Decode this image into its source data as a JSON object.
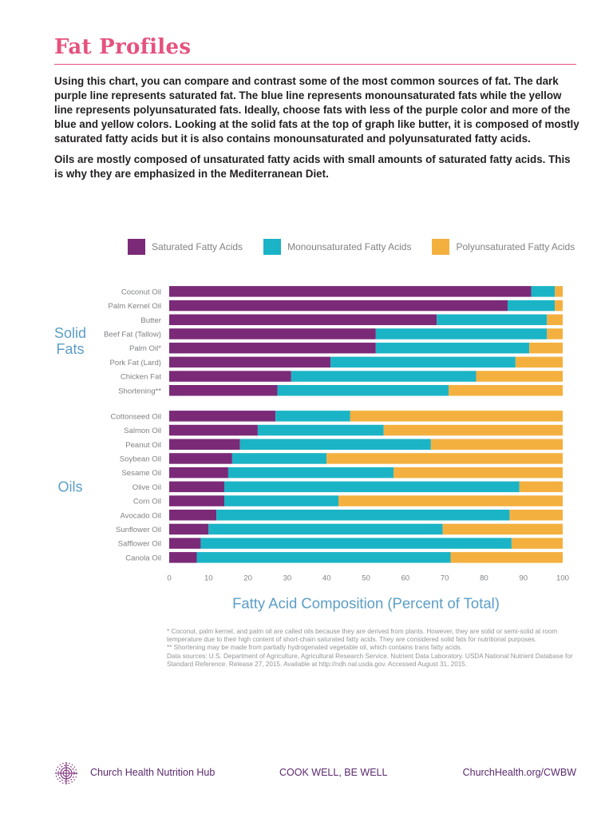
{
  "page": {
    "title": "Fat Profiles",
    "intro_paragraphs": [
      "Using this chart, you can compare and contrast some of the most common sources of fat. The dark purple line represents saturated fat. The blue line represents monounsaturated fats while the yellow line represents polyunsaturated fats. Ideally, choose fats with less of the purple color and more of the blue and yellow colors. Looking at the solid fats at the top of graph like butter, it is composed of mostly saturated fatty acids but it is also contains monounsaturated and polyunsaturated fatty acids.",
      "Oils are mostly composed of unsaturated fatty acids with small amounts of saturated fatty acids. This is why they are emphasized in the Mediterranean Diet."
    ],
    "footnotes": [
      "* Coconut, palm kernel, and palm oil are called oils because they are derived from plants. However, they are solid or semi-solid at room temperature due to their high content of short-chain saturated fatty acids. They are considered solid fats for nutritional purposes.",
      "** Shortening may be made from partially hydrogenated vegetable oil, which contains trans fatty acids.",
      "Data sources: U.S. Department of Agriculture, Agricultural Research Service. Nutrient Data Laboratory. USDA National Nutrient Database for Standard Reference. Release 27, 2015. Available at http://ndh.nal.usda.gov. Accessed August 31, 2015."
    ]
  },
  "footer": {
    "left": "Church Health Nutrition Hub",
    "center": "COOK WELL, BE WELL",
    "right": "ChurchHealth.org/CWBW",
    "logo_icon": "church-health-logo-icon"
  },
  "colors": {
    "saturated": "#7b2a78",
    "monounsaturated": "#1bb4c6",
    "polyunsaturated": "#f4b03f",
    "title_accent": "#e5527e",
    "group_label": "#5b9ec7",
    "tick_text": "#808285"
  },
  "chart_data": {
    "type": "bar",
    "orientation": "horizontal",
    "stacked": true,
    "title": "",
    "xlabel": "Fatty Acid Composition (Percent of Total)",
    "ylabel": "",
    "xlim": [
      0,
      100
    ],
    "xticks": [
      "0",
      "10",
      "20",
      "30",
      "40",
      "50",
      "60",
      "70",
      "80",
      "90",
      "100"
    ],
    "legend_position": "top",
    "series": [
      {
        "name": "Saturated Fatty Acids",
        "key": "saturated"
      },
      {
        "name": "Monounsaturated Fatty Acids",
        "key": "monounsaturated"
      },
      {
        "name": "Polyunsaturated Fatty Acids",
        "key": "polyunsaturated"
      }
    ],
    "groups": [
      {
        "label_lines": [
          "Solid",
          "Fats"
        ],
        "items": [
          {
            "name": "Coconut Oil",
            "values": [
              92,
              6,
              2
            ]
          },
          {
            "name": "Palm Kernel Oil",
            "values": [
              86,
              12,
              2
            ]
          },
          {
            "name": "Butter",
            "values": [
              68,
              28,
              4
            ]
          },
          {
            "name": "Beef Fat (Tallow)",
            "values": [
              52.5,
              43.5,
              4
            ]
          },
          {
            "name": "Palm Oil*",
            "values": [
              52.5,
              39,
              8.5
            ]
          },
          {
            "name": "Pork Fat (Lard)",
            "values": [
              41,
              47,
              12
            ]
          },
          {
            "name": "Chicken Fat",
            "values": [
              31,
              47,
              22
            ]
          },
          {
            "name": "Shortening**",
            "values": [
              27.5,
              43.5,
              29
            ]
          }
        ]
      },
      {
        "label_lines": [
          "Oils"
        ],
        "items": [
          {
            "name": "Cottonseed Oil",
            "values": [
              27,
              19,
              54
            ]
          },
          {
            "name": "Salmon Oil",
            "values": [
              22.5,
              32,
              45.5
            ]
          },
          {
            "name": "Peanut Oil",
            "values": [
              18,
              48.5,
              33.5
            ]
          },
          {
            "name": "Soybean Oil",
            "values": [
              16,
              24,
              60
            ]
          },
          {
            "name": "Sesame Oil",
            "values": [
              15,
              42,
              43
            ]
          },
          {
            "name": "Olive Oil",
            "values": [
              14,
              75,
              11
            ]
          },
          {
            "name": "Corn Oil",
            "values": [
              14,
              29,
              57
            ]
          },
          {
            "name": "Avocado Oil",
            "values": [
              12,
              74.5,
              13.5
            ]
          },
          {
            "name": "Sunflower Oil",
            "values": [
              10,
              59.5,
              30.5
            ]
          },
          {
            "name": "Safflower Oil",
            "values": [
              8,
              79,
              13
            ]
          },
          {
            "name": "Canola Oil",
            "values": [
              7,
              64.5,
              28.5
            ]
          }
        ]
      }
    ]
  }
}
